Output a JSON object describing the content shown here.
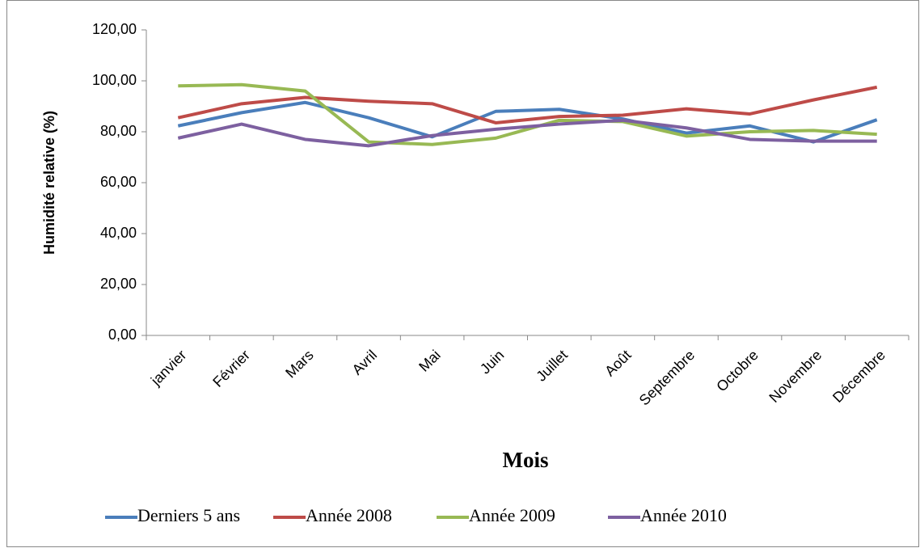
{
  "chart_data": {
    "type": "line",
    "x_label": "Mois",
    "y_label": "Humidité relative (%)",
    "categories": [
      "janvier",
      "Février",
      "Mars",
      "Avril",
      "Mai",
      "Juin",
      "Juillet",
      "Août",
      "Septembre",
      "Octobre",
      "Novembre",
      "Décembre"
    ],
    "series": [
      {
        "name": "Derniers 5 ans",
        "color": "#4a7ebb",
        "values": [
          82.3,
          87.5,
          91.5,
          85.5,
          78,
          88,
          88.8,
          85,
          79.5,
          82.3,
          76,
          84.7
        ]
      },
      {
        "name": "Année 2008",
        "color": "#be4b48",
        "values": [
          85.5,
          91,
          93.5,
          92,
          91,
          83.5,
          86,
          86.5,
          89,
          87,
          92.5,
          97.5
        ]
      },
      {
        "name": "Année 2009",
        "color": "#98b954",
        "values": [
          98,
          98.5,
          96,
          76,
          75,
          77.5,
          84.5,
          84,
          78.3,
          80,
          80.5,
          79
        ]
      },
      {
        "name": "Année 2010",
        "color": "#7d60a0",
        "values": [
          77.5,
          83,
          77,
          74.5,
          78.5,
          81,
          83,
          84.5,
          81.5,
          77,
          76.3,
          76.3
        ]
      }
    ],
    "ylim": [
      0,
      120
    ],
    "yticks": [
      {
        "value": 0,
        "label": "0,00"
      },
      {
        "value": 20,
        "label": "20,00"
      },
      {
        "value": 40,
        "label": "40,00"
      },
      {
        "value": 60,
        "label": "60,00"
      },
      {
        "value": 80,
        "label": "80,00"
      },
      {
        "value": 100,
        "label": "100,00"
      },
      {
        "value": 120,
        "label": "120,00"
      }
    ],
    "legend": "bottom"
  }
}
